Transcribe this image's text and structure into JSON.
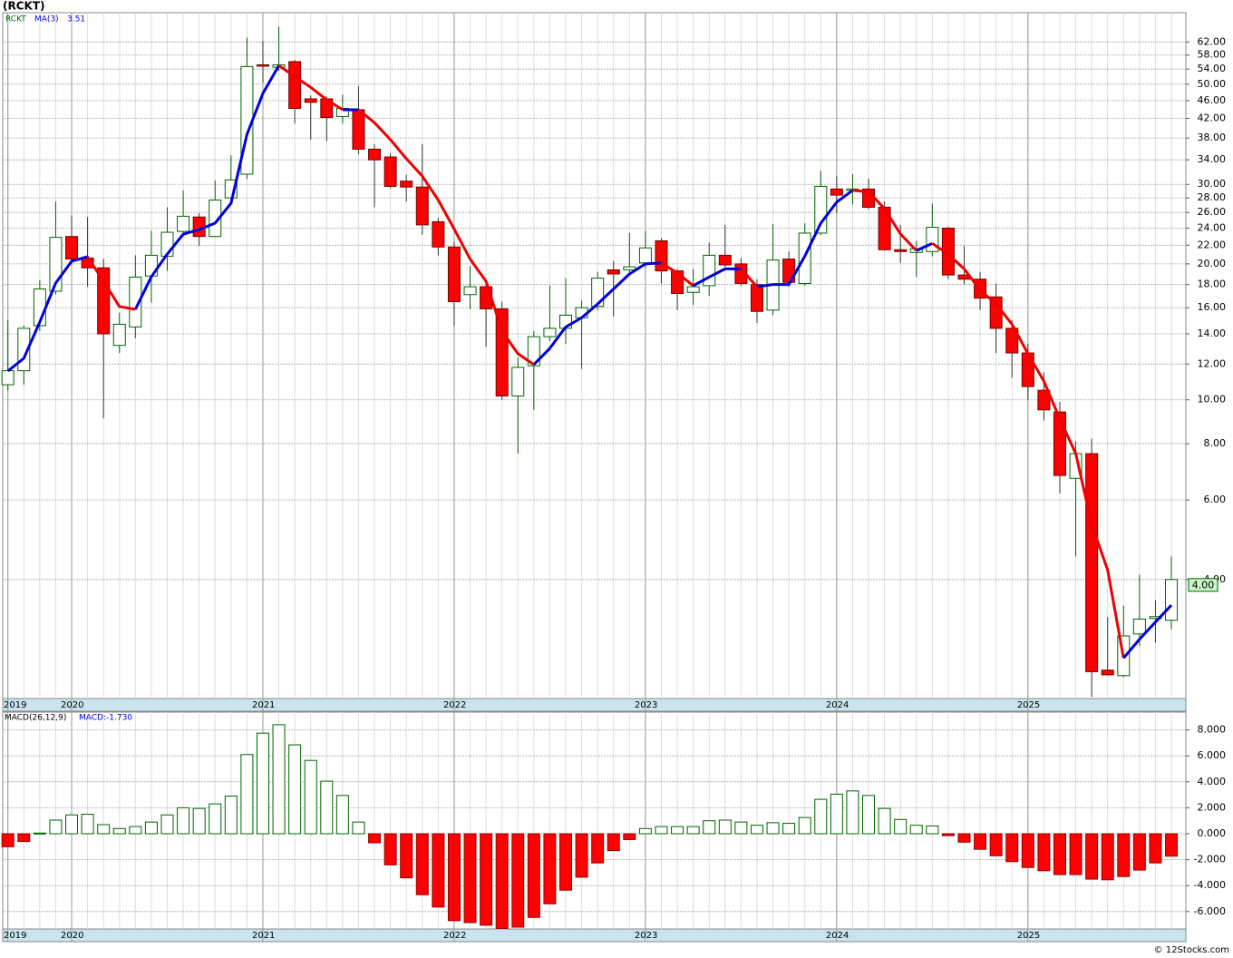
{
  "footer": "© 12Stocks.com",
  "chart_data": [
    {
      "type": "candlestick",
      "title": "(RCKT)",
      "log_scale": true,
      "grid": true,
      "categories": [
        "2019",
        null,
        null,
        null,
        "2020",
        null,
        null,
        null,
        null,
        null,
        null,
        null,
        null,
        null,
        null,
        null,
        "2021",
        null,
        null,
        null,
        null,
        null,
        null,
        null,
        null,
        null,
        null,
        null,
        "2022",
        null,
        null,
        null,
        null,
        null,
        null,
        null,
        null,
        null,
        null,
        null,
        "2023",
        null,
        null,
        null,
        null,
        null,
        null,
        null,
        null,
        null,
        null,
        null,
        "2024",
        null,
        null,
        null,
        null,
        null,
        null,
        null,
        null,
        null,
        null,
        null,
        "2025",
        null,
        null,
        null,
        null,
        null,
        null,
        null,
        null,
        null
      ],
      "series": [
        {
          "name": "RCKT",
          "up_color": "#006400",
          "down_color": "#ff0000",
          "open": [
            10.8,
            11.6,
            14.6,
            17.4,
            23,
            20.6,
            19.6,
            13.2,
            14.5,
            18.8,
            20.8,
            23.6,
            25.4,
            23,
            28,
            31.6,
            55.2,
            54.5,
            56.1,
            46.4,
            46.4,
            42.4,
            43.9,
            35.9,
            34.5,
            30.5,
            29.6,
            24.8,
            21.8,
            17.1,
            17.8,
            15.9,
            10.2,
            11.9,
            13.8,
            14.4,
            15.2,
            16.1,
            19.4,
            19.4,
            20.1,
            22.5,
            19.3,
            17.3,
            17.9,
            20.9,
            20,
            18,
            15.8,
            20.5,
            18.1,
            23.4,
            29.3,
            29.1,
            29.3,
            26.7,
            21.5,
            21.2,
            21.3,
            24,
            18.9,
            18.5,
            16.9,
            14.4,
            12.7,
            10.5,
            9.4,
            6.7,
            7.6,
            2.52,
            2.45,
            3.03,
            3.28,
            3.25
          ],
          "high": [
            15,
            14.6,
            18.4,
            27.5,
            25.6,
            25.4,
            20.5,
            15.6,
            20.9,
            23.7,
            26.7,
            29.1,
            25.9,
            30.6,
            34.8,
            63.4,
            62.3,
            67,
            56.6,
            47.2,
            47.0,
            47.4,
            49.5,
            36.8,
            35.2,
            31.5,
            36.8,
            25.3,
            22.4,
            19.8,
            18.0,
            16.5,
            12.4,
            14.2,
            17.9,
            18.6,
            16.6,
            19.2,
            20.3,
            23.4,
            23.6,
            22.8,
            19.5,
            19.5,
            22.3,
            24.4,
            20.6,
            18.5,
            24.5,
            21.3,
            24.6,
            32.2,
            31.3,
            31.6,
            30.9,
            27.5,
            24.4,
            22.5,
            27.2,
            24.2,
            21.9,
            19.2,
            18.1,
            15.0,
            13.3,
            11.5,
            9.9,
            8.1,
            8.2,
            3.3,
            3.5,
            4.1,
            3.6,
            4.5
          ],
          "low": [
            10.5,
            10.8,
            14.2,
            17.1,
            20,
            17.8,
            9.1,
            12.7,
            13.7,
            16.4,
            19.3,
            23,
            21.9,
            23,
            27.2,
            30.8,
            50.4,
            53.5,
            40.9,
            37.7,
            37.4,
            40.9,
            35.0,
            26.7,
            29.4,
            27.5,
            23.2,
            20.9,
            14.6,
            15.9,
            13.1,
            10,
            7.6,
            9.5,
            13.5,
            13.3,
            11.7,
            15.8,
            15.3,
            19.0,
            19.6,
            18.1,
            15.8,
            16.2,
            17,
            19.7,
            17.9,
            14.8,
            15.4,
            17.8,
            17.9,
            23.2,
            25.9,
            27.1,
            26.4,
            21.4,
            20.1,
            18.7,
            20.8,
            18.5,
            18.0,
            15.8,
            12.7,
            11.2,
            10,
            9.0,
            6.2,
            4.5,
            2.2,
            2.45,
            2.43,
            2.85,
            2.9,
            3.1
          ],
          "close": [
            11.6,
            14.4,
            17.6,
            22.9,
            20.5,
            19.6,
            14,
            14.7,
            18.7,
            20.9,
            23.5,
            25.5,
            23,
            27.7,
            30.7,
            54.7,
            54.9,
            55.2,
            44.2,
            45.6,
            42.2,
            44.2,
            35.9,
            34,
            29.7,
            29.6,
            24.4,
            21.8,
            16.5,
            17.8,
            15.9,
            10.2,
            11.8,
            13.8,
            14.4,
            15.4,
            16,
            18.6,
            19,
            19.7,
            21.7,
            19.3,
            17.2,
            17.8,
            20.9,
            19.9,
            18.1,
            15.7,
            20.4,
            18.2,
            23.4,
            29.7,
            28.4,
            29.3,
            26.7,
            21.5,
            21.3,
            21.6,
            24.1,
            18.9,
            18.5,
            16.8,
            14.4,
            12.7,
            10.7,
            9.5,
            6.8,
            7.6,
            2.5,
            2.46,
            3.0,
            3.27,
            3.31,
            4.0
          ]
        },
        {
          "name": "MA(3)",
          "up_color": "#0000dd",
          "down_color": "#ee0000",
          "last_value": 3.51,
          "values": [
            11.58,
            12.36,
            14.87,
            18.14,
            20.27,
            20.75,
            18.3,
            16.09,
            15.86,
            18.73,
            21.03,
            23.27,
            23.83,
            24.62,
            27.25,
            38.7,
            47.7,
            55.0,
            52.0,
            49.2,
            46.2,
            43.9,
            43.9,
            41.1,
            37.7,
            34.2,
            31.3,
            27.7,
            23.9,
            20.5,
            18.3,
            14.2,
            12.65,
            11.97,
            13.0,
            14.5,
            15.2,
            16.3,
            17.6,
            19.0,
            20.0,
            20.1,
            19.1,
            17.9,
            18.7,
            19.5,
            19.5,
            17.8,
            18.0,
            18.0,
            20.8,
            24.6,
            27.4,
            29.1,
            28.9,
            26.5,
            23.3,
            21.4,
            22.2,
            21.0,
            19.5,
            17.5,
            16.3,
            14.7,
            12.65,
            11.0,
            9.07,
            7.6,
            5.3,
            4.2,
            2.68,
            2.95,
            3.22,
            3.51
          ]
        }
      ],
      "last_close_tag": {
        "value": 4.0,
        "label": "4.00"
      },
      "ylim": [
        2.18,
        72
      ],
      "yticks": [
        {
          "value": 4,
          "label": "4.00"
        },
        {
          "value": 6,
          "label": "6.00"
        },
        {
          "value": 8,
          "label": "8.00"
        },
        {
          "value": 10,
          "label": "10.00"
        },
        {
          "value": 12,
          "label": "12.00"
        },
        {
          "value": 14,
          "label": "14.00"
        },
        {
          "value": 16,
          "label": "16.00"
        },
        {
          "value": 18,
          "label": "18.00"
        },
        {
          "value": 20,
          "label": "20.00"
        },
        {
          "value": 22,
          "label": "22.00"
        },
        {
          "value": 24,
          "label": "24.00"
        },
        {
          "value": 26,
          "label": "26.00"
        },
        {
          "value": 28,
          "label": "28.00"
        },
        {
          "value": 30,
          "label": "30.00"
        },
        {
          "value": 34,
          "label": "34.00"
        },
        {
          "value": 38,
          "label": "38.00"
        },
        {
          "value": 42,
          "label": "42.00"
        },
        {
          "value": 46,
          "label": "46.00"
        },
        {
          "value": 50,
          "label": "50.00"
        },
        {
          "value": 54,
          "label": "54.00"
        },
        {
          "value": 58,
          "label": "58.00"
        },
        {
          "value": 62,
          "label": "62.00"
        }
      ]
    },
    {
      "type": "bar",
      "title": "MACD(26,12,9)",
      "subtitle": "MACD:-1.730",
      "grid": true,
      "positive_color": "#006400",
      "negative_color": "#ff0000",
      "categories": [
        "2019",
        null,
        null,
        null,
        "2020",
        null,
        null,
        null,
        null,
        null,
        null,
        null,
        null,
        null,
        null,
        null,
        "2021",
        null,
        null,
        null,
        null,
        null,
        null,
        null,
        null,
        null,
        null,
        null,
        "2022",
        null,
        null,
        null,
        null,
        null,
        null,
        null,
        null,
        null,
        null,
        null,
        "2023",
        null,
        null,
        null,
        null,
        null,
        null,
        null,
        null,
        null,
        null,
        null,
        "2024",
        null,
        null,
        null,
        null,
        null,
        null,
        null,
        null,
        null,
        null,
        null,
        "2025",
        null,
        null,
        null,
        null,
        null,
        null,
        null,
        null,
        null
      ],
      "values": [
        -1.0,
        -0.6,
        0.05,
        1.05,
        1.45,
        1.5,
        0.7,
        0.4,
        0.55,
        0.9,
        1.45,
        2.0,
        1.95,
        2.3,
        2.9,
        6.1,
        7.75,
        8.4,
        6.85,
        5.65,
        4.05,
        2.95,
        0.9,
        -0.7,
        -2.4,
        -3.4,
        -4.7,
        -5.65,
        -6.7,
        -6.85,
        -7.05,
        -7.3,
        -7.2,
        -6.45,
        -5.4,
        -4.35,
        -3.35,
        -2.25,
        -1.3,
        -0.45,
        0.4,
        0.55,
        0.55,
        0.55,
        1.0,
        1.05,
        0.9,
        0.65,
        0.85,
        0.8,
        1.25,
        2.65,
        3.05,
        3.3,
        2.95,
        1.95,
        1.1,
        0.65,
        0.6,
        -0.15,
        -0.65,
        -1.2,
        -1.7,
        -2.15,
        -2.6,
        -2.85,
        -3.15,
        -3.15,
        -3.5,
        -3.55,
        -3.3,
        -2.8,
        -2.25,
        -1.73
      ],
      "ylim": [
        -7.34,
        9.37
      ],
      "yticks": [
        {
          "value": -6,
          "label": "-6.000"
        },
        {
          "value": -4,
          "label": "-4.000"
        },
        {
          "value": -2,
          "label": "-2.000"
        },
        {
          "value": 0,
          "label": "0.000"
        },
        {
          "value": 2,
          "label": "2.000"
        },
        {
          "value": 4,
          "label": "4.000"
        },
        {
          "value": 6,
          "label": "6.000"
        },
        {
          "value": 8,
          "label": "8.000"
        }
      ]
    }
  ]
}
